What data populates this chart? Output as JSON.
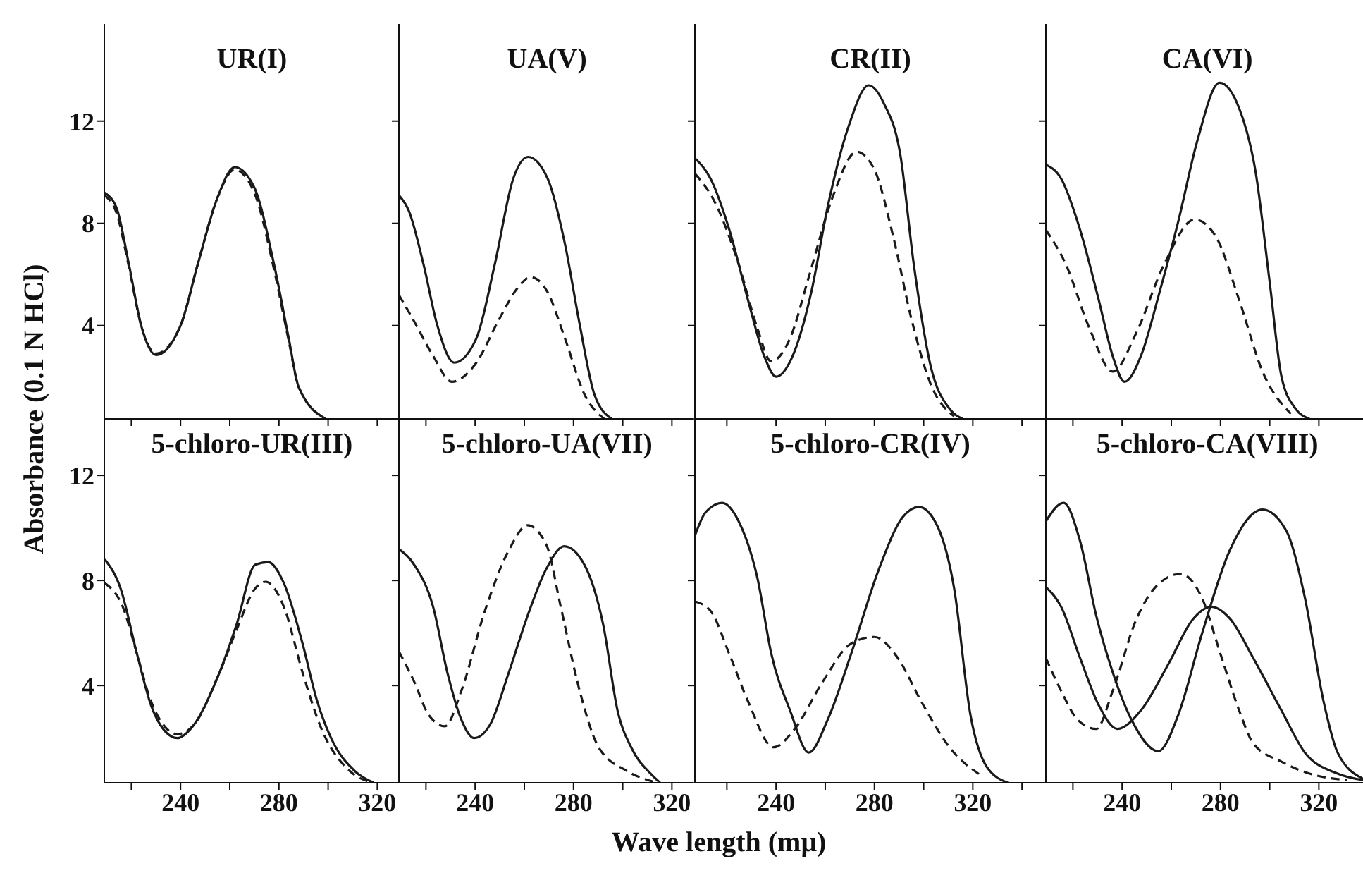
{
  "chart_data": [
    {
      "type": "line",
      "title": "UR(I)",
      "xlim": [
        209,
        329
      ],
      "xticks": [
        {
          "value": 220,
          "label": null
        },
        240,
        {
          "value": 260,
          "label": null
        },
        280,
        {
          "value": 300,
          "label": null
        },
        320
      ],
      "ylim": [
        0.35,
        15.8
      ],
      "yticks": [
        4,
        8,
        12
      ],
      "tick_labels": "y",
      "series": [
        {
          "color": "#1a1a1a",
          "line_style": "solid",
          "x": [
            209,
            214,
            219,
            224,
            230,
            240,
            247,
            255,
            262,
            270,
            278,
            284,
            288,
            299
          ],
          "values": [
            9.2,
            8.6,
            6.4,
            4.0,
            2.85,
            4.0,
            6.4,
            9.0,
            10.2,
            9.4,
            6.4,
            3.5,
            1.6,
            0.35
          ]
        },
        {
          "color": "#1a1a1a",
          "line_style": "dashed",
          "x": [
            209,
            214,
            219,
            224,
            230,
            240,
            247,
            255,
            262,
            270,
            278,
            284,
            288,
            299
          ],
          "values": [
            9.1,
            8.4,
            6.3,
            4.0,
            2.9,
            4.0,
            6.4,
            9.0,
            10.1,
            9.2,
            6.2,
            3.4,
            1.6,
            0.35
          ]
        }
      ]
    },
    {
      "type": "line",
      "title": "UA(V)",
      "xlim": [
        209,
        329
      ],
      "xticks": [
        {
          "value": 220,
          "label": null
        },
        240,
        {
          "value": 260,
          "label": null
        },
        280,
        {
          "value": 300,
          "label": null
        },
        320
      ],
      "ylim": [
        0.35,
        15.8
      ],
      "yticks": [
        4,
        8,
        12
      ],
      "tick_labels": false,
      "series": [
        {
          "color": "#1a1a1a",
          "line_style": "solid",
          "x": [
            209,
            213,
            219,
            224.5,
            231.5,
            240.5,
            248,
            255.5,
            261.5,
            269.5,
            276.5,
            282.5,
            288.5,
            295.5
          ],
          "values": [
            9.1,
            8.5,
            6.4,
            4.05,
            2.55,
            3.5,
            6.4,
            9.75,
            10.6,
            9.75,
            7.2,
            4.05,
            1.3,
            0.35
          ]
        },
        {
          "color": "#1a1a1a",
          "line_style": "dashed",
          "x": [
            209,
            215,
            223,
            230.5,
            240.5,
            249.5,
            257.5,
            262.5,
            269.5,
            276.5,
            284.5,
            292.5
          ],
          "values": [
            5.2,
            4.2,
            2.8,
            1.8,
            2.55,
            4.2,
            5.5,
            5.9,
            5.3,
            3.5,
            1.3,
            0.35
          ]
        }
      ]
    },
    {
      "type": "line",
      "title": "CR(II)",
      "xlim": [
        207,
        350
      ],
      "xticks": [
        {
          "value": 220,
          "label": null
        },
        240,
        {
          "value": 260,
          "label": null
        },
        280,
        {
          "value": 300,
          "label": null
        },
        320,
        {
          "value": 340,
          "label": null
        }
      ],
      "ylim": [
        0.35,
        15.8
      ],
      "yticks": [
        4,
        8,
        12
      ],
      "tick_labels": false,
      "series": [
        {
          "color": "#1a1a1a",
          "line_style": "solid",
          "x": [
            207,
            213.3,
            221,
            228.6,
            235.2,
            240,
            246.7,
            254.3,
            261,
            269.5,
            277.7,
            283.8,
            290.5,
            296,
            302.9,
            310.5,
            316
          ],
          "values": [
            10.55,
            9.76,
            7.75,
            5.0,
            2.8,
            2.0,
            2.8,
            5.3,
            8.65,
            11.8,
            13.4,
            12.7,
            10.7,
            6.4,
            2.4,
            0.75,
            0.35
          ]
        },
        {
          "color": "#1a1a1a",
          "line_style": "dashed",
          "x": [
            207,
            215,
            224.8,
            232.4,
            238,
            245.7,
            253.3,
            262.9,
            272.8,
            280,
            287.6,
            295.2,
            302.9,
            312.4
          ],
          "values": [
            9.95,
            8.85,
            6.4,
            3.9,
            2.6,
            3.5,
            5.9,
            9.0,
            10.8,
            10.1,
            7.5,
            4.2,
            1.7,
            0.45
          ]
        }
      ]
    },
    {
      "type": "line",
      "title": "CA(VI)",
      "xlim": [
        209,
        340
      ],
      "xticks": [
        {
          "value": 220,
          "label": null
        },
        240,
        {
          "value": 260,
          "label": null
        },
        280,
        {
          "value": 300,
          "label": null
        },
        320,
        {
          "value": 340,
          "label": null
        }
      ],
      "ylim": [
        0.35,
        15.8
      ],
      "yticks": [
        4,
        8,
        12
      ],
      "tick_labels": false,
      "series": [
        {
          "color": "#1a1a1a",
          "line_style": "solid",
          "x": [
            209,
            215.2,
            222.9,
            230.5,
            236.2,
            241,
            247.6,
            255.2,
            262.9,
            270.5,
            279.6,
            287.6,
            294.3,
            300,
            304.8,
            310.5,
            316.2
          ],
          "values": [
            10.3,
            9.75,
            7.75,
            5.0,
            2.8,
            1.8,
            2.8,
            5.3,
            8.1,
            11.2,
            13.5,
            12.5,
            10.0,
            5.7,
            2.0,
            0.75,
            0.35
          ]
        },
        {
          "color": "#1a1a1a",
          "line_style": "dashed",
          "x": [
            209,
            217.1,
            226.7,
            236.2,
            245.7,
            257.1,
            269.5,
            278,
            287.6,
            297.1,
            308.6
          ],
          "values": [
            7.75,
            6.4,
            3.9,
            2.2,
            3.7,
            6.4,
            8.15,
            7.5,
            5.0,
            2.2,
            0.55
          ]
        }
      ]
    },
    {
      "type": "line",
      "title": "5-chloro-UR(III)",
      "ylabel": "Absorbance (0.1 N HCl)",
      "xlim": [
        209,
        329
      ],
      "xticks": [
        {
          "value": 220,
          "label": null
        },
        240,
        {
          "value": 260,
          "label": null
        },
        280,
        {
          "value": 300,
          "label": null
        },
        320
      ],
      "ylim": [
        0.3,
        14.15
      ],
      "yticks": [
        4,
        8,
        12
      ],
      "series": [
        {
          "color": "#1a1a1a",
          "line_style": "solid",
          "x": [
            209.2,
            215.6,
            222.3,
            228,
            233.8,
            238.7,
            245.4,
            255,
            262.7,
            270.4,
            275.6,
            282,
            289.6,
            295.4,
            301.2,
            310.8,
            318.5
          ],
          "values": [
            8.8,
            7.7,
            5.2,
            3.25,
            2.25,
            2.0,
            2.5,
            4.3,
            6.3,
            8.6,
            8.7,
            7.9,
            5.6,
            3.45,
            2.0,
            0.75,
            0.3
          ]
        },
        {
          "color": "#1a1a1a",
          "line_style": "dashed",
          "x": [
            209.2,
            216.5,
            222.3,
            228,
            238.7,
            245.4,
            255,
            262.7,
            270.4,
            274.6,
            282,
            289.6,
            297.3,
            308.8,
            318.5
          ],
          "values": [
            7.9,
            7.0,
            5.2,
            3.4,
            2.15,
            2.5,
            4.3,
            6.1,
            7.7,
            7.95,
            7.0,
            4.5,
            2.35,
            0.75,
            0.3
          ]
        }
      ]
    },
    {
      "type": "line",
      "title": "5-chloro-UA(VII)",
      "xlim": [
        209,
        329
      ],
      "xticks": [
        {
          "value": 220,
          "label": null
        },
        240,
        {
          "value": 260,
          "label": null
        },
        280,
        {
          "value": 300,
          "label": null
        },
        320
      ],
      "ylim": [
        0.3,
        14.15
      ],
      "yticks": [
        4,
        8,
        12
      ],
      "tick_labels": "x",
      "series": [
        {
          "color": "#1a1a1a",
          "line_style": "solid",
          "x": [
            209,
            215.2,
            222.9,
            228.7,
            234.4,
            239.6,
            246,
            253.7,
            261.3,
            269,
            276.2,
            284.4,
            292.1,
            297.9,
            303.7,
            311.3,
            315.2
          ],
          "values": [
            9.2,
            8.6,
            7.0,
            4.5,
            2.7,
            2.0,
            2.5,
            4.5,
            6.65,
            8.45,
            9.3,
            8.6,
            6.3,
            3.05,
            1.6,
            0.65,
            0.3
          ]
        },
        {
          "color": "#1a1a1a",
          "line_style": "dashed",
          "x": [
            209,
            215.2,
            221,
            227.7,
            234.4,
            244,
            253.7,
            261.3,
            269,
            274.8,
            282.5,
            290.2,
            301.7,
            314.2
          ],
          "values": [
            5.3,
            4.15,
            2.9,
            2.45,
            3.8,
            6.85,
            9.15,
            10.1,
            9.35,
            7.0,
            3.8,
            1.65,
            0.75,
            0.3
          ]
        }
      ]
    },
    {
      "type": "line",
      "title": "5-chloro-CR(IV)",
      "xlabel": "Wave length (mμ)",
      "xlim": [
        207,
        350
      ],
      "xticks": [
        {
          "value": 220,
          "label": null
        },
        240,
        {
          "value": 260,
          "label": null
        },
        280,
        {
          "value": 300,
          "label": null
        },
        320,
        {
          "value": 340,
          "label": null
        }
      ],
      "ylim": [
        0.3,
        14.15
      ],
      "yticks": [
        4,
        8,
        12
      ],
      "tick_labels": "x",
      "series": [
        {
          "color": "#1a1a1a",
          "line_style": "solid",
          "x": [
            207,
            211.4,
            218.1,
            224.8,
            232.4,
            238.1,
            245.7,
            253.3,
            261,
            270.5,
            281.9,
            291.4,
            298.1,
            305.7,
            312.4,
            319,
            325.7,
            334.3
          ],
          "values": [
            9.7,
            10.6,
            10.95,
            10.25,
            8.1,
            5.2,
            3.05,
            1.45,
            2.7,
            5.2,
            8.45,
            10.4,
            10.8,
            10.05,
            7.7,
            2.9,
            0.9,
            0.3
          ]
        },
        {
          "color": "#1a1a1a",
          "line_style": "dashed",
          "x": [
            207,
            213.3,
            221,
            228.6,
            239,
            247.6,
            259,
            270.5,
            280,
            289.5,
            299,
            310.5,
            323.8
          ],
          "values": [
            7.2,
            6.85,
            5.2,
            3.4,
            1.65,
            2.35,
            4.15,
            5.6,
            5.85,
            5.05,
            3.4,
            1.65,
            0.55
          ]
        }
      ]
    },
    {
      "type": "line",
      "title": "5-chloro-CA(VIII)",
      "xlim": [
        209,
        340
      ],
      "xticks": [
        {
          "value": 220,
          "label": null
        },
        240,
        {
          "value": 260,
          "label": null
        },
        280,
        {
          "value": 300,
          "label": null
        },
        320,
        {
          "value": 340,
          "label": null
        }
      ],
      "ylim": [
        0.3,
        14.15
      ],
      "yticks": [
        4,
        8,
        12
      ],
      "tick_labels": "x",
      "series": [
        {
          "color": "#1a1a1a",
          "line_style": "solid",
          "x": [
            209,
            216.2,
            222.9,
            229.5,
            236.2,
            243.8,
            254.7,
            262.9,
            272.4,
            283.8,
            297.1,
            306.7,
            314.3,
            321.9,
            327.6,
            338
          ],
          "values": [
            10.25,
            10.95,
            9.5,
            6.65,
            4.5,
            2.7,
            1.5,
            2.9,
            5.95,
            9.15,
            10.7,
            9.9,
            7.35,
            3.4,
            1.45,
            0.45
          ]
        },
        {
          "color": "#1a1a1a",
          "line_style": "solid",
          "x": [
            209,
            215.2,
            222.9,
            230.5,
            238.1,
            247.6,
            259,
            268.6,
            276.2,
            283.8,
            293.3,
            304.8,
            314.3,
            327.6,
            338
          ],
          "values": [
            7.75,
            7.0,
            5.05,
            3.25,
            2.35,
            3.05,
            4.85,
            6.5,
            7.0,
            6.55,
            5.05,
            3.05,
            1.45,
            0.65,
            0.4
          ]
        },
        {
          "color": "#1a1a1a",
          "line_style": "dashed",
          "x": [
            209,
            215.2,
            221.9,
            229.5,
            236.2,
            245.7,
            255.2,
            263.8,
            272.4,
            280,
            287.6,
            293.3,
            304.8,
            316.2,
            331.4
          ],
          "values": [
            5.05,
            3.8,
            2.7,
            2.35,
            3.8,
            6.5,
            7.9,
            8.25,
            7.35,
            5.2,
            3.05,
            1.8,
            1.1,
            0.65,
            0.4
          ]
        }
      ]
    }
  ]
}
